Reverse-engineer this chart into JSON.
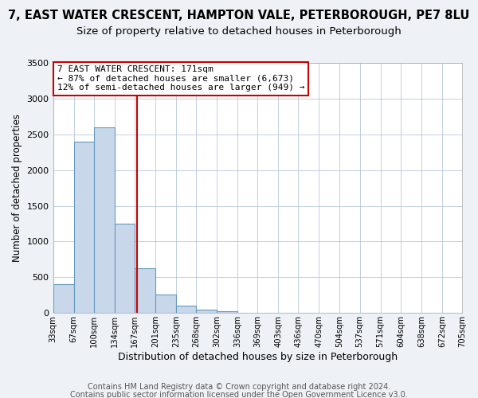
{
  "title": "7, EAST WATER CRESCENT, HAMPTON VALE, PETERBOROUGH, PE7 8LU",
  "subtitle": "Size of property relative to detached houses in Peterborough",
  "xlabel": "Distribution of detached houses by size in Peterborough",
  "ylabel": "Number of detached properties",
  "footer_line1": "Contains HM Land Registry data © Crown copyright and database right 2024.",
  "footer_line2": "Contains public sector information licensed under the Open Government Licence v3.0.",
  "annotation_line1": "7 EAST WATER CRESCENT: 171sqm",
  "annotation_line2": "← 87% of detached houses are smaller (6,673)",
  "annotation_line3": "12% of semi-detached houses are larger (949) →",
  "bar_color": "#c8d8ea",
  "bar_edge_color": "#6699bb",
  "marker_line_x": 171,
  "marker_line_color": "#cc0000",
  "annotation_box_edge_color": "#cc0000",
  "bins": [
    33,
    67,
    100,
    134,
    167,
    201,
    235,
    268,
    302,
    336,
    369,
    403,
    436,
    470,
    504,
    537,
    571,
    604,
    638,
    672,
    705
  ],
  "values": [
    400,
    2400,
    2600,
    1250,
    630,
    260,
    100,
    50,
    30,
    0,
    0,
    0,
    0,
    0,
    0,
    0,
    0,
    0,
    0,
    0
  ],
  "ylim": [
    0,
    3500
  ],
  "xlim": [
    33,
    705
  ],
  "yticks": [
    0,
    500,
    1000,
    1500,
    2000,
    2500,
    3000,
    3500
  ],
  "xtick_labels": [
    "33sqm",
    "67sqm",
    "100sqm",
    "134sqm",
    "167sqm",
    "201sqm",
    "235sqm",
    "268sqm",
    "302sqm",
    "336sqm",
    "369sqm",
    "403sqm",
    "436sqm",
    "470sqm",
    "504sqm",
    "537sqm",
    "571sqm",
    "604sqm",
    "638sqm",
    "672sqm",
    "705sqm"
  ],
  "title_fontsize": 10.5,
  "subtitle_fontsize": 9.5,
  "xlabel_fontsize": 9,
  "ylabel_fontsize": 8.5,
  "annotation_fontsize": 8,
  "footer_fontsize": 7,
  "background_color": "#eef2f6",
  "plot_background_color": "#ffffff",
  "grid_color": "#b8c8d8",
  "grid_alpha": 1.0
}
